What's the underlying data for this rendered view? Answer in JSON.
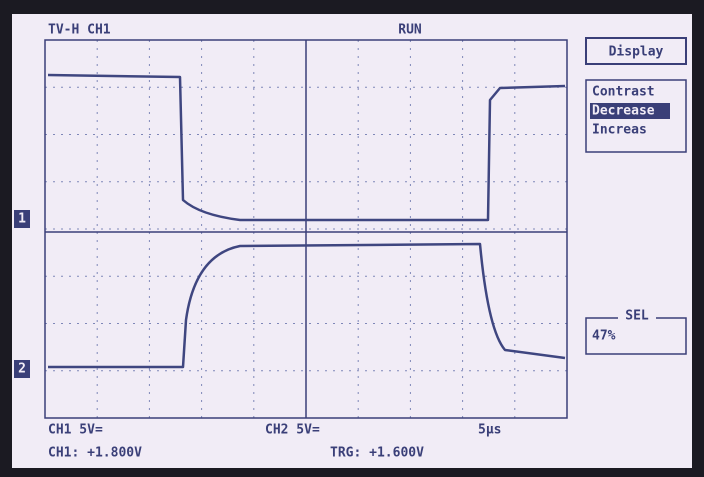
{
  "header": {
    "mode": "TV-H CH1",
    "status": "RUN"
  },
  "menu": {
    "title": "Display",
    "items": [
      "Contrast",
      "Decrease",
      "Increas"
    ]
  },
  "sel": {
    "label": "SEL",
    "value": "47%"
  },
  "markers": {
    "ch1": "1",
    "ch2": "2"
  },
  "footer": {
    "ch1_scale": "CH1 5V=",
    "ch2_scale": "CH2 5V=",
    "timebase": "5µs",
    "ch1_offset": "CH1: +1.800V",
    "trigger": "TRG: +1.600V"
  }
}
